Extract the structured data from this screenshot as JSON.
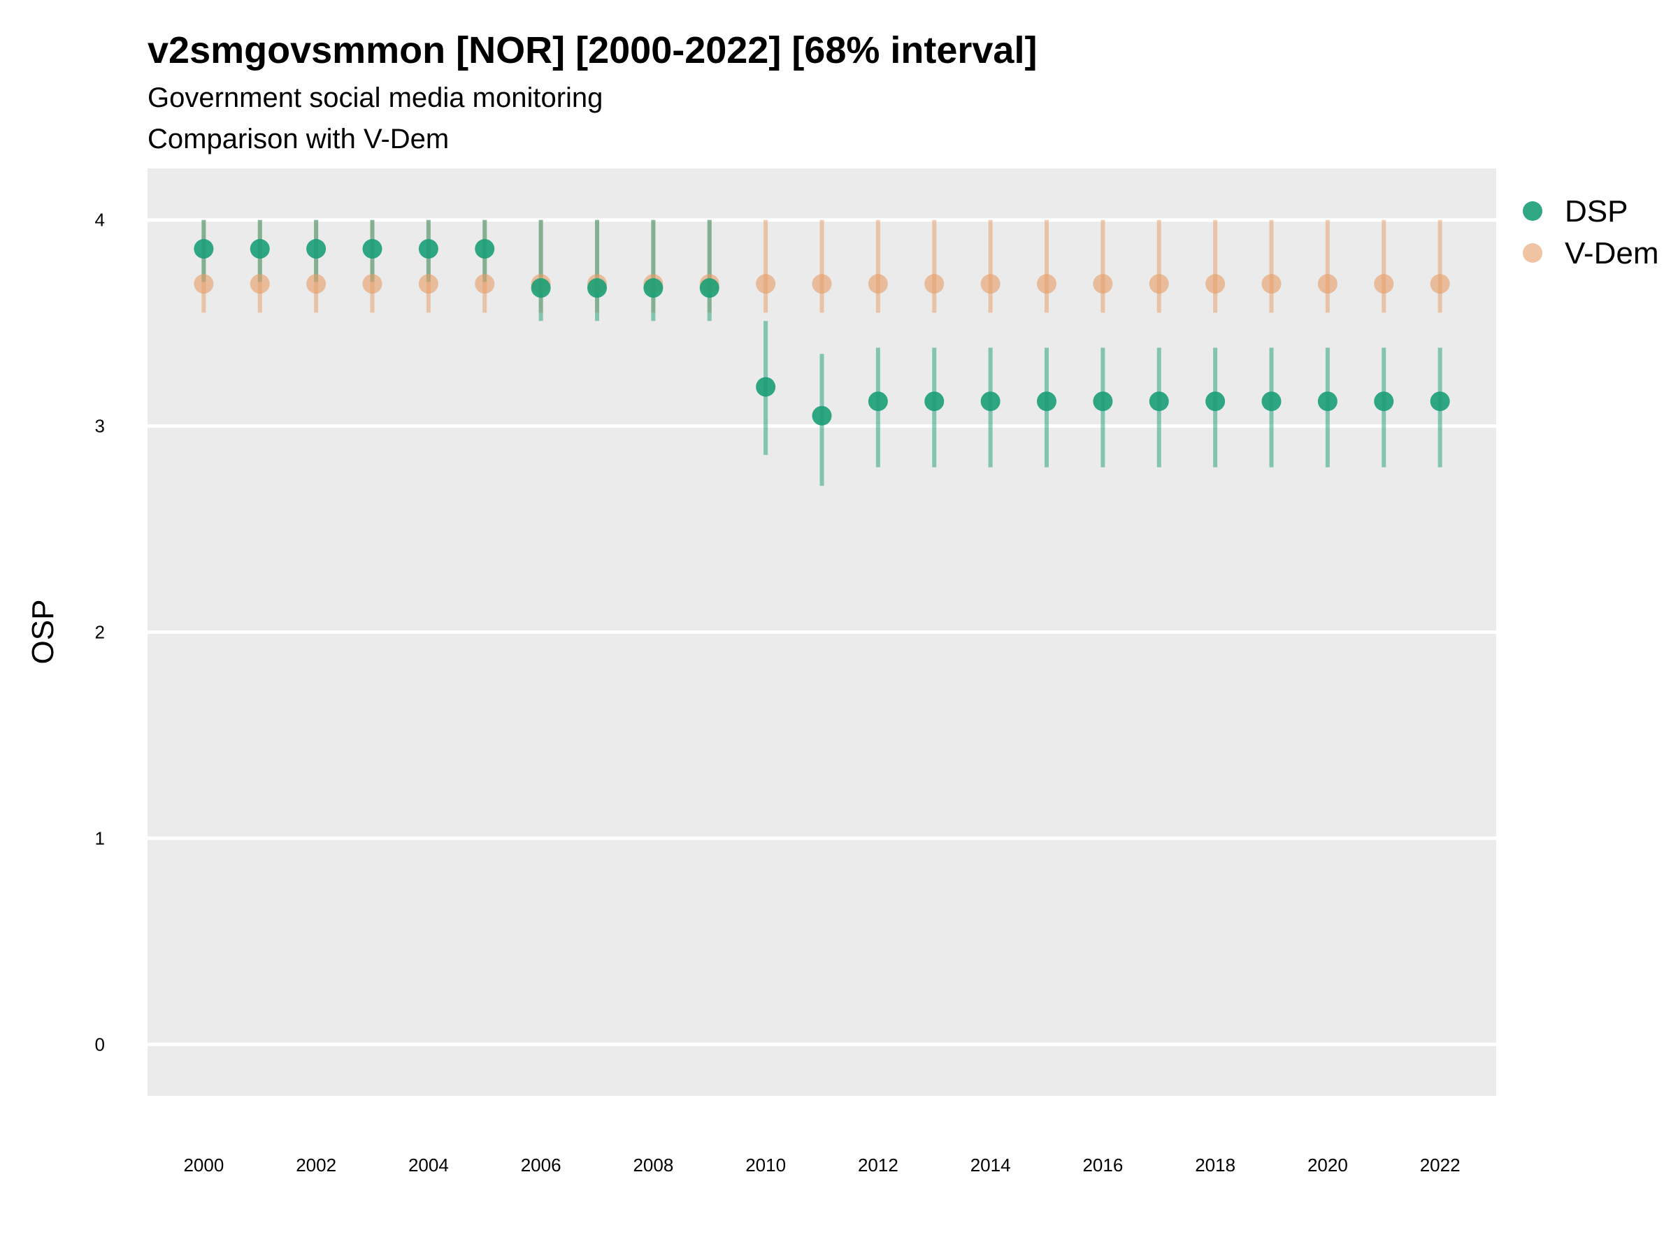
{
  "chart_data": {
    "type": "scatter",
    "title": "v2smgovsmmon [NOR] [2000-2022] [68% interval]",
    "subtitle_lines": [
      "Government social media monitoring",
      "Comparison with V-Dem"
    ],
    "xlabel": "",
    "ylabel": "OSP",
    "x": [
      2000,
      2001,
      2002,
      2003,
      2004,
      2005,
      2006,
      2007,
      2008,
      2009,
      2010,
      2011,
      2012,
      2013,
      2014,
      2015,
      2016,
      2017,
      2018,
      2019,
      2020,
      2021,
      2022
    ],
    "xlim": [
      1999,
      2023
    ],
    "ylim": [
      -0.25,
      4.25
    ],
    "x_ticks": [
      2000,
      2002,
      2004,
      2006,
      2008,
      2010,
      2012,
      2014,
      2016,
      2018,
      2020,
      2022
    ],
    "y_ticks": [
      0,
      1,
      2,
      3,
      4
    ],
    "grid": true,
    "legend_position": "right",
    "series": [
      {
        "name": "DSP",
        "color": "#1b9e77",
        "values": [
          3.86,
          3.86,
          3.86,
          3.86,
          3.86,
          3.86,
          3.67,
          3.67,
          3.67,
          3.67,
          3.19,
          3.05,
          3.12,
          3.12,
          3.12,
          3.12,
          3.12,
          3.12,
          3.12,
          3.12,
          3.12,
          3.12,
          3.12
        ],
        "lower": [
          3.7,
          3.7,
          3.7,
          3.7,
          3.7,
          3.7,
          3.51,
          3.51,
          3.51,
          3.51,
          2.86,
          2.71,
          2.8,
          2.8,
          2.8,
          2.8,
          2.8,
          2.8,
          2.8,
          2.8,
          2.8,
          2.8,
          2.8
        ],
        "upper": [
          4.0,
          4.0,
          4.0,
          4.0,
          4.0,
          4.0,
          4.0,
          4.0,
          4.0,
          4.0,
          3.51,
          3.35,
          3.38,
          3.38,
          3.38,
          3.38,
          3.38,
          3.38,
          3.38,
          3.38,
          3.38,
          3.38,
          3.38
        ]
      },
      {
        "name": "V-Dem",
        "color": "#e69c66",
        "values": [
          3.69,
          3.69,
          3.69,
          3.69,
          3.69,
          3.69,
          3.69,
          3.69,
          3.69,
          3.69,
          3.69,
          3.69,
          3.69,
          3.69,
          3.69,
          3.69,
          3.69,
          3.69,
          3.69,
          3.69,
          3.69,
          3.69,
          3.69
        ],
        "lower": [
          3.55,
          3.55,
          3.55,
          3.55,
          3.55,
          3.55,
          3.55,
          3.55,
          3.55,
          3.55,
          3.55,
          3.55,
          3.55,
          3.55,
          3.55,
          3.55,
          3.55,
          3.55,
          3.55,
          3.55,
          3.55,
          3.55,
          3.55
        ],
        "upper": [
          4.0,
          4.0,
          4.0,
          4.0,
          4.0,
          4.0,
          4.0,
          4.0,
          4.0,
          4.0,
          4.0,
          4.0,
          4.0,
          4.0,
          4.0,
          4.0,
          4.0,
          4.0,
          4.0,
          4.0,
          4.0,
          4.0,
          4.0
        ]
      }
    ]
  }
}
